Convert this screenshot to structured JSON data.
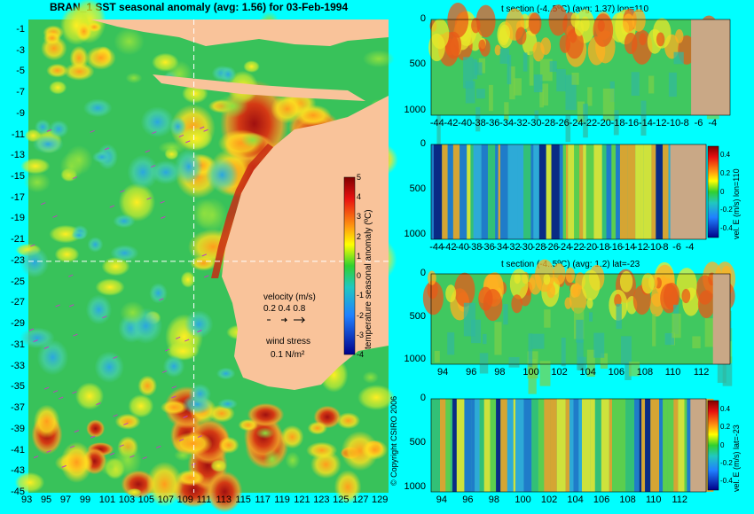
{
  "chart_data": [
    {
      "type": "heatmap",
      "title": "BRAN_1 SST seasonal anomaly (avg: 1.56) for 03-Feb-1994",
      "x_ticks": [
        "93",
        "95",
        "97",
        "99",
        "101",
        "103",
        "105",
        "107",
        "109",
        "111",
        "113",
        "115",
        "117",
        "119",
        "121",
        "123",
        "125",
        "127",
        "129"
      ],
      "y_ticks": [
        "-1",
        "-3",
        "-5",
        "-7",
        "-9",
        "-11",
        "-13",
        "-15",
        "-17",
        "-19",
        "-21",
        "-23",
        "-25",
        "-27",
        "-29",
        "-31",
        "-33",
        "-35",
        "-37",
        "-39",
        "-41",
        "-43",
        "-45"
      ],
      "xlim": [
        93,
        130
      ],
      "ylim": [
        -45,
        0
      ],
      "colorbar": {
        "label": "temperature seasonal anomaly (ºC)",
        "ticks": [
          "5",
          "4",
          "3",
          "2",
          "1",
          "0",
          "-1",
          "-2",
          "-3",
          "-4"
        ],
        "range": [
          -4,
          5
        ]
      },
      "legend": {
        "velocity_title": "velocity (m/s)",
        "velocity_scale": "0.2 0.4 0.8",
        "wind_title": "wind stress",
        "wind_scale": "0.1 N/m²"
      },
      "crosshair": {
        "lon": 110,
        "lat": -23
      }
    },
    {
      "type": "heatmap",
      "title": "t section (-4..5ºC) (avg: 1.37) lon=110",
      "x_ticks": [
        "-44",
        "-42",
        "-40",
        "-38",
        "-36",
        "-34",
        "-32",
        "-30",
        "-28",
        "-26",
        "-24",
        "-22",
        "-20",
        "-18",
        "-16",
        "-14",
        "-12",
        "-10",
        "-8",
        "-6",
        "-4"
      ],
      "y_ticks": [
        "0",
        "500",
        "1000"
      ],
      "xlim": [
        -45,
        -2
      ],
      "ylim": [
        1050,
        0
      ]
    },
    {
      "type": "heatmap",
      "title": "",
      "x_ticks": [
        "-44",
        "-42",
        "-40",
        "-38",
        "-36",
        "-34",
        "-32",
        "-30",
        "-28",
        "-26",
        "-24",
        "-22",
        "-20",
        "-18",
        "-16",
        "-14",
        "-12",
        "-10",
        "-8",
        "-6",
        "-4"
      ],
      "y_ticks": [
        "0",
        "500",
        "1000"
      ],
      "xlim": [
        -45,
        -2
      ],
      "ylim": [
        1050,
        0
      ],
      "colorbar": {
        "label": "vel. E (m/s) lon=110",
        "ticks": [
          "0.4",
          "0.2",
          "0",
          "-0.2",
          "-0.4"
        ],
        "range": [
          -0.5,
          0.5
        ]
      }
    },
    {
      "type": "heatmap",
      "title": "t section (-4..5ºC) (avg: 1.2) lat=-23",
      "x_ticks": [
        "94",
        "96",
        "98",
        "100",
        "102",
        "104",
        "106",
        "108",
        "110",
        "112"
      ],
      "y_ticks": [
        "0",
        "500",
        "1000"
      ],
      "xlim": [
        93,
        114
      ],
      "ylim": [
        1050,
        0
      ]
    },
    {
      "type": "heatmap",
      "title": "",
      "x_ticks": [
        "94",
        "96",
        "98",
        "100",
        "102",
        "104",
        "106",
        "108",
        "110",
        "112"
      ],
      "y_ticks": [
        "0",
        "500",
        "1000"
      ],
      "xlim": [
        93,
        114
      ],
      "ylim": [
        1050,
        0
      ],
      "colorbar": {
        "label": "vel. E (m/s) lat=-23",
        "ticks": [
          "0.4",
          "0.2",
          "0",
          "-0.2",
          "-0.4"
        ],
        "range": [
          -0.5,
          0.5
        ]
      }
    }
  ],
  "copyright": "© Copyright CSIRO 2006",
  "colors": {
    "background": "#00ffff",
    "land": "#f9c39a",
    "map_base": "#33c455"
  }
}
